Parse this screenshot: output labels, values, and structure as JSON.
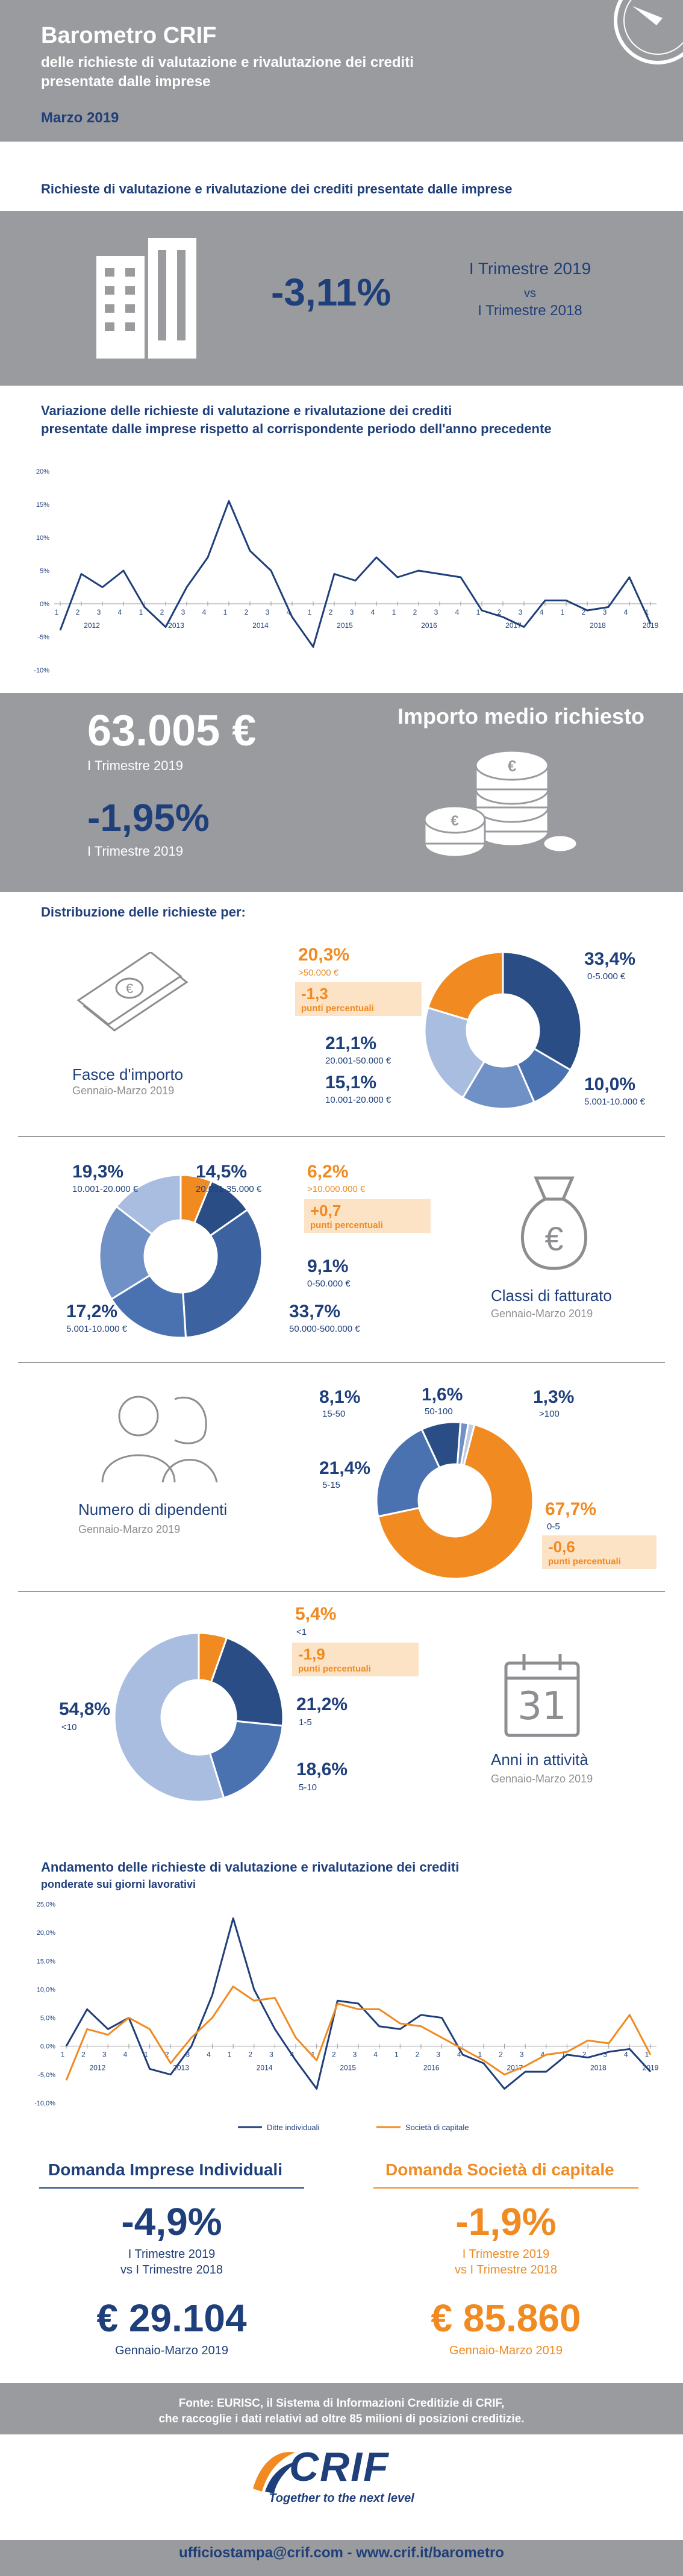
{
  "header": {
    "title": "Barometro CRIF",
    "subtitle_l1": "delle richieste di valutazione e rivalutazione dei crediti",
    "subtitle_l2": "presentate dalle imprese",
    "date": "Marzo 2019"
  },
  "section1": {
    "title": "Richieste di valutazione e rivalutazione dei crediti presentate dalle imprese",
    "value": "-3,11%",
    "period_l1": "I Trimestre 2019",
    "period_vs": "vs",
    "period_l2": "I Trimestre 2018"
  },
  "section2": {
    "title_l1": "Variazione delle richieste di valutazione e rivalutazione dei crediti",
    "title_l2": "presentate dalle imprese rispetto al corrispondente periodo dell'anno precedente"
  },
  "section3": {
    "amount": "63.005 €",
    "amount_period": "I Trimestre 2019",
    "change": "-1,95%",
    "change_period": "I Trimestre 2019",
    "label": "Importo medio richiesto"
  },
  "distribution": {
    "title": "Distribuzione delle richieste per:",
    "fasce": {
      "name": "Fasce d'importo",
      "period": "Gennaio-Marzo 2019",
      "items": [
        {
          "pct": "33,4%",
          "label": "0-5.000 €"
        },
        {
          "pct": "10,0%",
          "label": "5.001-10.000 €"
        },
        {
          "pct": "15,1%",
          "label": "10.001-20.000 €"
        },
        {
          "pct": "21,1%",
          "label": "20.001-50.000 €"
        },
        {
          "pct": "20,3%",
          "label": ">50.000 €"
        }
      ],
      "note_value": "-1,3",
      "note_text": "punti percentuali"
    },
    "classi": {
      "name": "Classi di fatturato",
      "period": "Gennaio-Marzo 2019",
      "items": [
        {
          "pct": "6,2%",
          "label": ">10.000.000 €"
        },
        {
          "pct": "9,1%",
          "label": "0-50.000 €"
        },
        {
          "pct": "33,7%",
          "label": "50.000-500.000 €"
        },
        {
          "pct": "17,2%",
          "label": "5.001-10.000 €"
        },
        {
          "pct": "19,3%",
          "label": "10.001-20.000 €"
        },
        {
          "pct": "14,5%",
          "label": "20.001-35.000 €"
        }
      ],
      "note_value": "+0,7",
      "note_text": "punti percentuali"
    },
    "dipendenti": {
      "name": "Numero di dipendenti",
      "period": "Gennaio-Marzo 2019",
      "items": [
        {
          "pct": "8,1%",
          "label": "15-50"
        },
        {
          "pct": "1,6%",
          "label": "50-100"
        },
        {
          "pct": "1,3%",
          "label": ">100"
        },
        {
          "pct": "21,4%",
          "label": "5-15"
        },
        {
          "pct": "67,7%",
          "label": "0-5"
        }
      ],
      "note_value": "-0,6",
      "note_text": "punti percentuali"
    },
    "attivita": {
      "name": "Anni in attività",
      "period": "Gennaio-Marzo 2019",
      "items": [
        {
          "pct": "5,4%",
          "label": "<1"
        },
        {
          "pct": "21,2%",
          "label": "1-5"
        },
        {
          "pct": "18,6%",
          "label": "5-10"
        },
        {
          "pct": "54,8%",
          "label": "<10"
        }
      ],
      "note_value": "-1,9",
      "note_text": "punti percentuali",
      "calendar_number": "31"
    }
  },
  "section5": {
    "title": "Andamento delle richieste di valutazione e rivalutazione dei crediti",
    "subtitle": "ponderate sui giorni lavorativi"
  },
  "section6": {
    "left_title": "Domanda Imprese Individuali",
    "left_pct": "-4,9%",
    "left_period_l1": "I Trimestre 2019",
    "left_period_l2": "vs I Trimestre 2018",
    "left_amount": "€ 29.104",
    "left_amount_period": "Gennaio-Marzo 2019",
    "right_title": "Domanda Società di capitale",
    "right_pct": "-1,9%",
    "right_period_l1": "I Trimestre 2019",
    "right_period_l2": "vs I Trimestre 2018",
    "right_amount": "€ 85.860",
    "right_amount_period": "Gennaio-Marzo 2019"
  },
  "footer": {
    "source_l1": "Fonte: EURISC, il Sistema di Informazioni Creditizie di CRIF,",
    "source_l2": "che raccoglie i dati relativi ad oltre 85 milioni di posizioni creditizie.",
    "logo": "CRIF",
    "tagline": "Together to the next level",
    "contact": "ufficiostampa@crif.com - www.crif.it/barometro"
  },
  "colors": {
    "navy": "#1f3f7a",
    "orange": "#f08a21",
    "gray": "#9a9b9e",
    "light_orange": "#fde3c6"
  },
  "chart_data": [
    {
      "type": "line",
      "yticks": [
        "20%",
        "15%",
        "10%",
        "5%",
        "0%",
        "-5%",
        "-10%"
      ],
      "ylim": [
        -10,
        20
      ],
      "quarters": [
        "1",
        "2",
        "3",
        "4",
        "1",
        "2",
        "3",
        "4",
        "1",
        "2",
        "3",
        "4",
        "1",
        "2",
        "3",
        "4",
        "1",
        "2",
        "3",
        "4",
        "1",
        "2",
        "3",
        "4",
        "1",
        "2",
        "3",
        "4",
        "1"
      ],
      "years": [
        {
          "label": "2012",
          "at": 1.5
        },
        {
          "label": "2013",
          "at": 5.5
        },
        {
          "label": "2014",
          "at": 9.5
        },
        {
          "label": "2015",
          "at": 13.5
        },
        {
          "label": "2016",
          "at": 17.5
        },
        {
          "label": "2017",
          "at": 21.5
        },
        {
          "label": "2018",
          "at": 25.5
        },
        {
          "label": "2019",
          "at": 28
        }
      ],
      "series": [
        {
          "color": "#1f3f7a",
          "values": [
            -4.0,
            4.5,
            2.5,
            5.0,
            -0.5,
            -3.5,
            2.5,
            7.0,
            15.5,
            8.0,
            5.0,
            -2.0,
            -6.5,
            4.5,
            3.5,
            7.0,
            4.0,
            5.0,
            4.5,
            4.0,
            -1.0,
            -2.0,
            -3.5,
            0.5,
            0.5,
            -1.0,
            -0.5,
            4.0,
            -3.0
          ]
        }
      ]
    },
    {
      "type": "line",
      "yticks": [
        "25,0%",
        "20,0%",
        "15,0%",
        "10,0%",
        "5,0%",
        "0,0%",
        "-5,0%",
        "-10,0%"
      ],
      "ylim": [
        -10,
        25
      ],
      "quarters": [
        "1",
        "2",
        "3",
        "4",
        "1",
        "2",
        "3",
        "4",
        "1",
        "2",
        "3",
        "4",
        "1",
        "2",
        "3",
        "4",
        "1",
        "2",
        "3",
        "4",
        "1",
        "2",
        "3",
        "4",
        "1",
        "2",
        "3",
        "4",
        "1"
      ],
      "years": [
        {
          "label": "2012",
          "at": 1.5
        },
        {
          "label": "2013",
          "at": 5.5
        },
        {
          "label": "2014",
          "at": 9.5
        },
        {
          "label": "2015",
          "at": 13.5
        },
        {
          "label": "2016",
          "at": 17.5
        },
        {
          "label": "2017",
          "at": 21.5
        },
        {
          "label": "2018",
          "at": 25.5
        },
        {
          "label": "2019",
          "at": 28
        }
      ],
      "legend": [
        "Ditte individuali",
        "Società di capitale"
      ],
      "series": [
        {
          "name": "Ditte individuali",
          "color": "#1f3f7a",
          "values": [
            0.0,
            6.5,
            3.0,
            5.0,
            -4.0,
            -5.0,
            0.0,
            9.0,
            22.5,
            10.0,
            3.0,
            -2.5,
            -7.5,
            8.0,
            7.5,
            3.5,
            3.0,
            5.5,
            5.0,
            -1.5,
            -3.0,
            -7.5,
            -4.5,
            -4.5,
            -1.5,
            -2.0,
            -1.0,
            -0.5,
            -4.5
          ]
        },
        {
          "name": "Società di capitale",
          "color": "#f08a21",
          "values": [
            -6.0,
            3.0,
            2.0,
            5.0,
            3.0,
            -3.0,
            1.5,
            5.0,
            10.5,
            8.0,
            8.5,
            1.5,
            -2.5,
            7.5,
            6.5,
            6.5,
            4.0,
            3.5,
            1.5,
            -0.5,
            -2.5,
            -5.0,
            -3.5,
            -1.5,
            -1.0,
            1.0,
            0.5,
            5.5,
            -1.5
          ]
        }
      ]
    },
    {
      "type": "pie",
      "title": "Fasce d'importo",
      "categories": [
        "0-5.000 €",
        "5.001-10.000 €",
        "10.001-20.000 €",
        "20.001-50.000 €",
        ">50.000 €"
      ],
      "values": [
        33.4,
        10.0,
        15.1,
        21.1,
        20.3
      ],
      "colors": [
        "#2a4d86",
        "#4a72b0",
        "#7091c6",
        "#a8bddf",
        "#f08a21"
      ]
    },
    {
      "type": "pie",
      "title": "Classi di fatturato",
      "categories": [
        ">10.000.000 €",
        "0-50.000 €",
        "50.000-500.000 €",
        "5.001-10.000 €",
        "10.001-20.000 €",
        "20.001-35.000 €"
      ],
      "values": [
        6.2,
        9.1,
        33.7,
        17.2,
        19.3,
        14.5
      ],
      "colors": [
        "#f08a21",
        "#2a4d86",
        "#3d62a0",
        "#4a72b0",
        "#7091c6",
        "#a8bddf"
      ]
    },
    {
      "type": "pie",
      "title": "Numero di dipendenti",
      "categories": [
        "1,3% >100",
        "0-5",
        "5-15",
        "15-50",
        "50-100"
      ],
      "values": [
        1.3,
        67.7,
        21.4,
        8.1,
        1.6
      ],
      "colors": [
        "#c0cbe0",
        "#f08a21",
        "#4a72b0",
        "#2a4d86",
        "#7091c6"
      ]
    },
    {
      "type": "pie",
      "title": "Anni in attività",
      "categories": [
        "<1",
        "1-5",
        "5-10",
        "<10"
      ],
      "values": [
        5.4,
        21.2,
        18.6,
        54.8
      ],
      "colors": [
        "#f08a21",
        "#2a4d86",
        "#4a72b0",
        "#a8bddf"
      ]
    }
  ]
}
